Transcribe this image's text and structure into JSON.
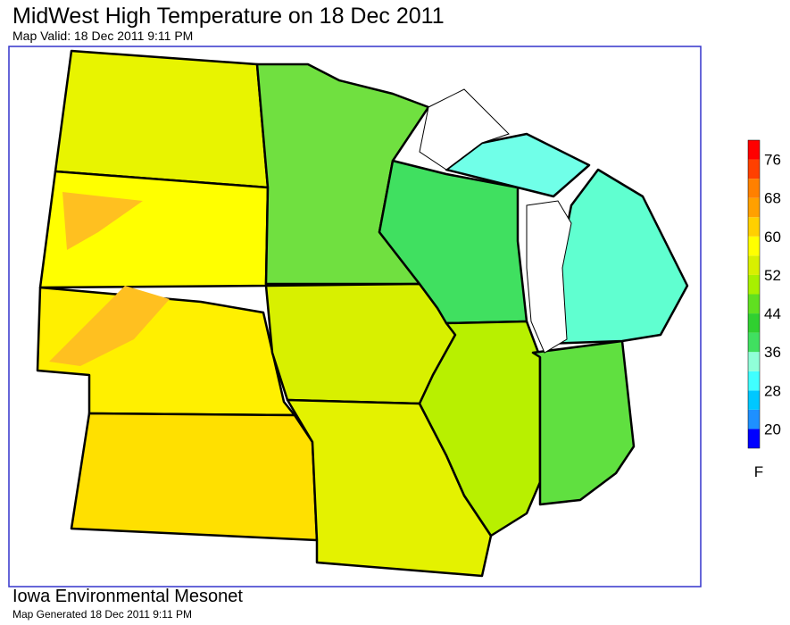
{
  "header": {
    "title": "MidWest High Temperature on 18 Dec 2011",
    "subtitle": "Map Valid: 18 Dec 2011 9:11 PM"
  },
  "legend": {
    "colors": [
      "#0000ff",
      "#1e90ff",
      "#00c8ff",
      "#40ffff",
      "#90ffd8",
      "#40e060",
      "#30d030",
      "#60e020",
      "#a8f000",
      "#d8f000",
      "#ffff00",
      "#ffd000",
      "#ffa000",
      "#ff8000",
      "#ff4000",
      "#ff0000"
    ],
    "ticks": [
      "20",
      "28",
      "36",
      "44",
      "52",
      "60",
      "68",
      "76"
    ],
    "unit": "F"
  },
  "footer": {
    "source": "Iowa Environmental Mesonet",
    "generated": "Map Generated 18 Dec 2011 9:11 PM"
  }
}
